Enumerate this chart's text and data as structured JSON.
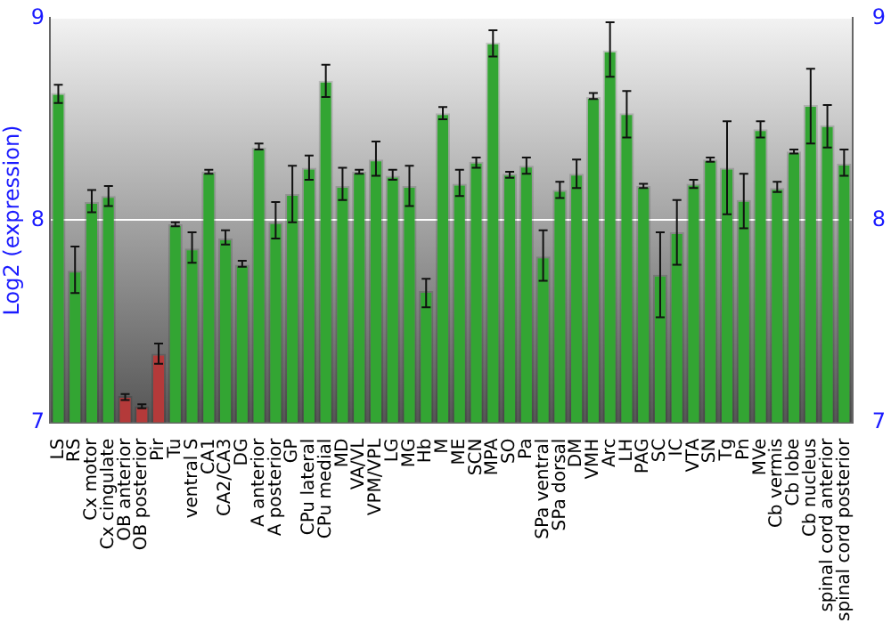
{
  "chart_data": {
    "type": "bar",
    "ylabel": "Log2 (expression)",
    "categories": [
      "LS",
      "RS",
      "Cx motor",
      "Cx cingulate",
      "OB anterior",
      "OB posterior",
      "Pir",
      "Tu",
      "ventral S",
      "CA1",
      "CA2/CA3",
      "DG",
      "A anterior",
      "A posterior",
      "GP",
      "CPu lateral",
      "CPu medial",
      "MD",
      "VA/VL",
      "VPM/VPL",
      "LG",
      "MG",
      "Hb",
      "M",
      "ME",
      "SCN",
      "MPA",
      "SO",
      "Pa",
      "SPa ventral",
      "SPa dorsal",
      "DM",
      "VMH",
      "Arc",
      "LH",
      "PAG",
      "SC",
      "IC",
      "VTA",
      "SN",
      "Tg",
      "Pn",
      "MVe",
      "Cb vermis",
      "Cb lobe",
      "Cb nucleus",
      "spinal cord anterior",
      "spinal cord posterior"
    ],
    "values": [
      8.63,
      7.75,
      8.09,
      8.12,
      7.13,
      7.08,
      7.34,
      7.98,
      7.86,
      8.24,
      7.91,
      7.78,
      8.36,
      7.99,
      8.13,
      8.26,
      8.69,
      8.17,
      8.24,
      8.3,
      8.22,
      8.17,
      7.65,
      8.53,
      8.18,
      8.29,
      8.88,
      8.23,
      8.27,
      7.82,
      8.15,
      8.23,
      8.61,
      8.84,
      8.53,
      8.17,
      7.73,
      7.94,
      8.18,
      8.3,
      8.26,
      8.1,
      8.45,
      8.16,
      8.34,
      8.57,
      8.47,
      8.28
    ],
    "errors": [
      [
        8.58,
        8.67
      ],
      [
        7.64,
        7.87
      ],
      [
        8.04,
        8.15
      ],
      [
        8.07,
        8.17
      ],
      [
        7.11,
        7.14
      ],
      [
        7.07,
        7.09
      ],
      [
        7.29,
        7.39
      ],
      [
        7.97,
        7.99
      ],
      [
        7.79,
        7.94
      ],
      [
        8.23,
        8.25
      ],
      [
        7.88,
        7.95
      ],
      [
        7.77,
        7.8
      ],
      [
        8.35,
        8.38
      ],
      [
        7.91,
        8.09
      ],
      [
        7.99,
        8.27
      ],
      [
        8.2,
        8.32
      ],
      [
        8.61,
        8.77
      ],
      [
        8.1,
        8.26
      ],
      [
        8.23,
        8.25
      ],
      [
        8.22,
        8.39
      ],
      [
        8.2,
        8.25
      ],
      [
        8.07,
        8.27
      ],
      [
        7.57,
        7.71
      ],
      [
        8.5,
        8.56
      ],
      [
        8.12,
        8.25
      ],
      [
        8.26,
        8.31
      ],
      [
        8.81,
        8.94
      ],
      [
        8.21,
        8.24
      ],
      [
        8.23,
        8.31
      ],
      [
        7.7,
        7.95
      ],
      [
        8.11,
        8.19
      ],
      [
        8.16,
        8.3
      ],
      [
        8.6,
        8.63
      ],
      [
        8.71,
        8.98
      ],
      [
        8.41,
        8.64
      ],
      [
        8.16,
        8.18
      ],
      [
        7.52,
        7.94
      ],
      [
        7.78,
        8.1
      ],
      [
        8.16,
        8.2
      ],
      [
        8.29,
        8.31
      ],
      [
        8.03,
        8.49
      ],
      [
        7.96,
        8.23
      ],
      [
        8.41,
        8.49
      ],
      [
        8.14,
        8.19
      ],
      [
        8.33,
        8.35
      ],
      [
        8.38,
        8.75
      ],
      [
        8.36,
        8.57
      ],
      [
        8.22,
        8.35
      ]
    ],
    "colors": [
      "#33a533",
      "#33a533",
      "#33a533",
      "#33a533",
      "#b43a3a",
      "#b43a3a",
      "#b43a3a",
      "#33a533",
      "#33a533",
      "#33a533",
      "#33a533",
      "#33a533",
      "#33a533",
      "#33a533",
      "#33a533",
      "#33a533",
      "#33a533",
      "#33a533",
      "#33a533",
      "#33a533",
      "#33a533",
      "#33a533",
      "#33a533",
      "#33a533",
      "#33a533",
      "#33a533",
      "#33a533",
      "#33a533",
      "#33a533",
      "#33a533",
      "#33a533",
      "#33a533",
      "#33a533",
      "#33a533",
      "#33a533",
      "#33a533",
      "#33a533",
      "#33a533",
      "#33a533",
      "#33a533",
      "#33a533",
      "#33a533",
      "#33a533",
      "#33a533",
      "#33a533",
      "#33a533",
      "#33a533",
      "#33a533"
    ],
    "ylim": [
      7,
      9
    ],
    "yticks": [
      7,
      8,
      9
    ],
    "y2lim": [
      7,
      9
    ],
    "y2ticks": [
      7,
      8,
      9
    ],
    "grid": "y"
  }
}
